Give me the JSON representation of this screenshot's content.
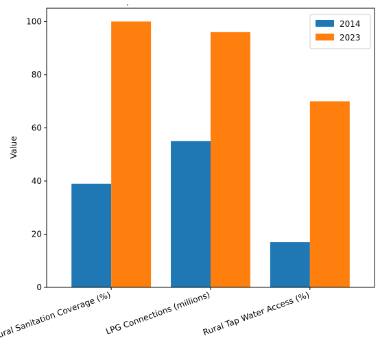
{
  "chart_data": {
    "type": "bar",
    "title": ".",
    "xlabel": "",
    "ylabel": "Value",
    "categories": [
      "Rural Sanitation Coverage (%)",
      "LPG Connections (millions)",
      "Rural Tap Water Access (%)"
    ],
    "series": [
      {
        "name": "2014",
        "values": [
          39,
          55,
          17
        ],
        "color": "#1f77b4"
      },
      {
        "name": "2023",
        "values": [
          100,
          96,
          70
        ],
        "color": "#ff7f0e"
      }
    ],
    "ylim": [
      0,
      105
    ],
    "yticks": [
      0,
      20,
      40,
      60,
      80,
      100
    ],
    "grid": false,
    "legend": "top-right"
  }
}
